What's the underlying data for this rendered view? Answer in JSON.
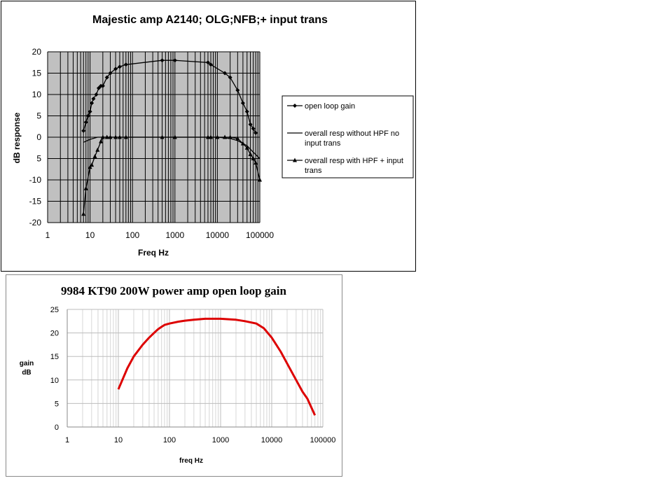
{
  "chart_data": [
    {
      "type": "line",
      "title": "Majestic amp A2140; OLG;NFB;+ input trans",
      "xlabel": "Freq Hz",
      "ylabel": "dB response",
      "xscale": "log",
      "xlim": [
        1,
        100000
      ],
      "ylim": [
        -20,
        20
      ],
      "xticks": [
        "1",
        "10",
        "100",
        "1000",
        "10000",
        "100000"
      ],
      "yticks": [
        "20",
        "15",
        "10",
        "5",
        "0",
        "5",
        "-10",
        "-15",
        "-20"
      ],
      "grid": true,
      "plot_background": "#c0c0c0",
      "legend_position": "right",
      "series": [
        {
          "name": "open loop gain",
          "marker": "diamond",
          "color": "#000000",
          "x": [
            7,
            8,
            9,
            10,
            11,
            12,
            14,
            16,
            18,
            20,
            25,
            30,
            40,
            50,
            70,
            500,
            1000,
            6000,
            7000,
            15000,
            20000,
            30000,
            40000,
            50000,
            60000,
            70000,
            80000
          ],
          "y": [
            1.5,
            3.5,
            5,
            6,
            8,
            9,
            10,
            11.5,
            12,
            12,
            14,
            15,
            16,
            16.5,
            17,
            18,
            18,
            17.5,
            17,
            15,
            14,
            11,
            8,
            6,
            3,
            2,
            1
          ]
        },
        {
          "name": "overall resp without HPF no input trans",
          "marker": "none",
          "color": "#000000",
          "x": [
            7,
            10,
            15,
            20,
            30,
            100,
            1000,
            10000,
            20000,
            30000,
            50000,
            70000,
            100000
          ],
          "y": [
            -1.2,
            -0.5,
            0,
            0,
            0,
            0,
            0,
            0,
            -0.3,
            -0.8,
            -2,
            -3.5,
            -5
          ]
        },
        {
          "name": "overall resp with HPF + input trans",
          "marker": "triangle",
          "color": "#000000",
          "x": [
            7,
            8,
            10,
            11,
            13,
            15,
            18,
            20,
            25,
            30,
            40,
            50,
            70,
            500,
            1000,
            6000,
            7000,
            10000,
            15000,
            20000,
            30000,
            40000,
            50000,
            60000,
            70000,
            80000,
            100000
          ],
          "y": [
            -18,
            -12,
            -7,
            -6.5,
            -4.5,
            -3,
            -1,
            0,
            0,
            0,
            0,
            0,
            0,
            0,
            0,
            0,
            0,
            0,
            0,
            0,
            -0.3,
            -1.5,
            -2.5,
            -4,
            -5,
            -6,
            -10
          ]
        }
      ]
    },
    {
      "type": "line",
      "title": "9984 KT90 200W power amp open loop gain",
      "xlabel": "freq Hz",
      "ylabel": "gain dB",
      "ylabel_lines": [
        "gain",
        "dB"
      ],
      "xscale": "log",
      "xlim": [
        1,
        100000
      ],
      "ylim": [
        0,
        25
      ],
      "xticks": [
        "1",
        "10",
        "100",
        "1000",
        "10000",
        "100000"
      ],
      "yticks": [
        "25",
        "20",
        "15",
        "10",
        "5",
        "0"
      ],
      "grid": true,
      "series": [
        {
          "color": "#dd0000",
          "x": [
            10,
            15,
            20,
            30,
            40,
            50,
            60,
            70,
            80,
            100,
            150,
            200,
            300,
            500,
            700,
            1000,
            2000,
            3000,
            5000,
            7000,
            10000,
            15000,
            20000,
            30000,
            40000,
            50000,
            70000
          ],
          "y": [
            8,
            12.5,
            15,
            17.5,
            19,
            20,
            20.8,
            21.3,
            21.7,
            22,
            22.4,
            22.6,
            22.8,
            23,
            23,
            23,
            22.8,
            22.5,
            22,
            21,
            19,
            16,
            13.5,
            10,
            7.5,
            6,
            2.5
          ]
        }
      ]
    }
  ]
}
